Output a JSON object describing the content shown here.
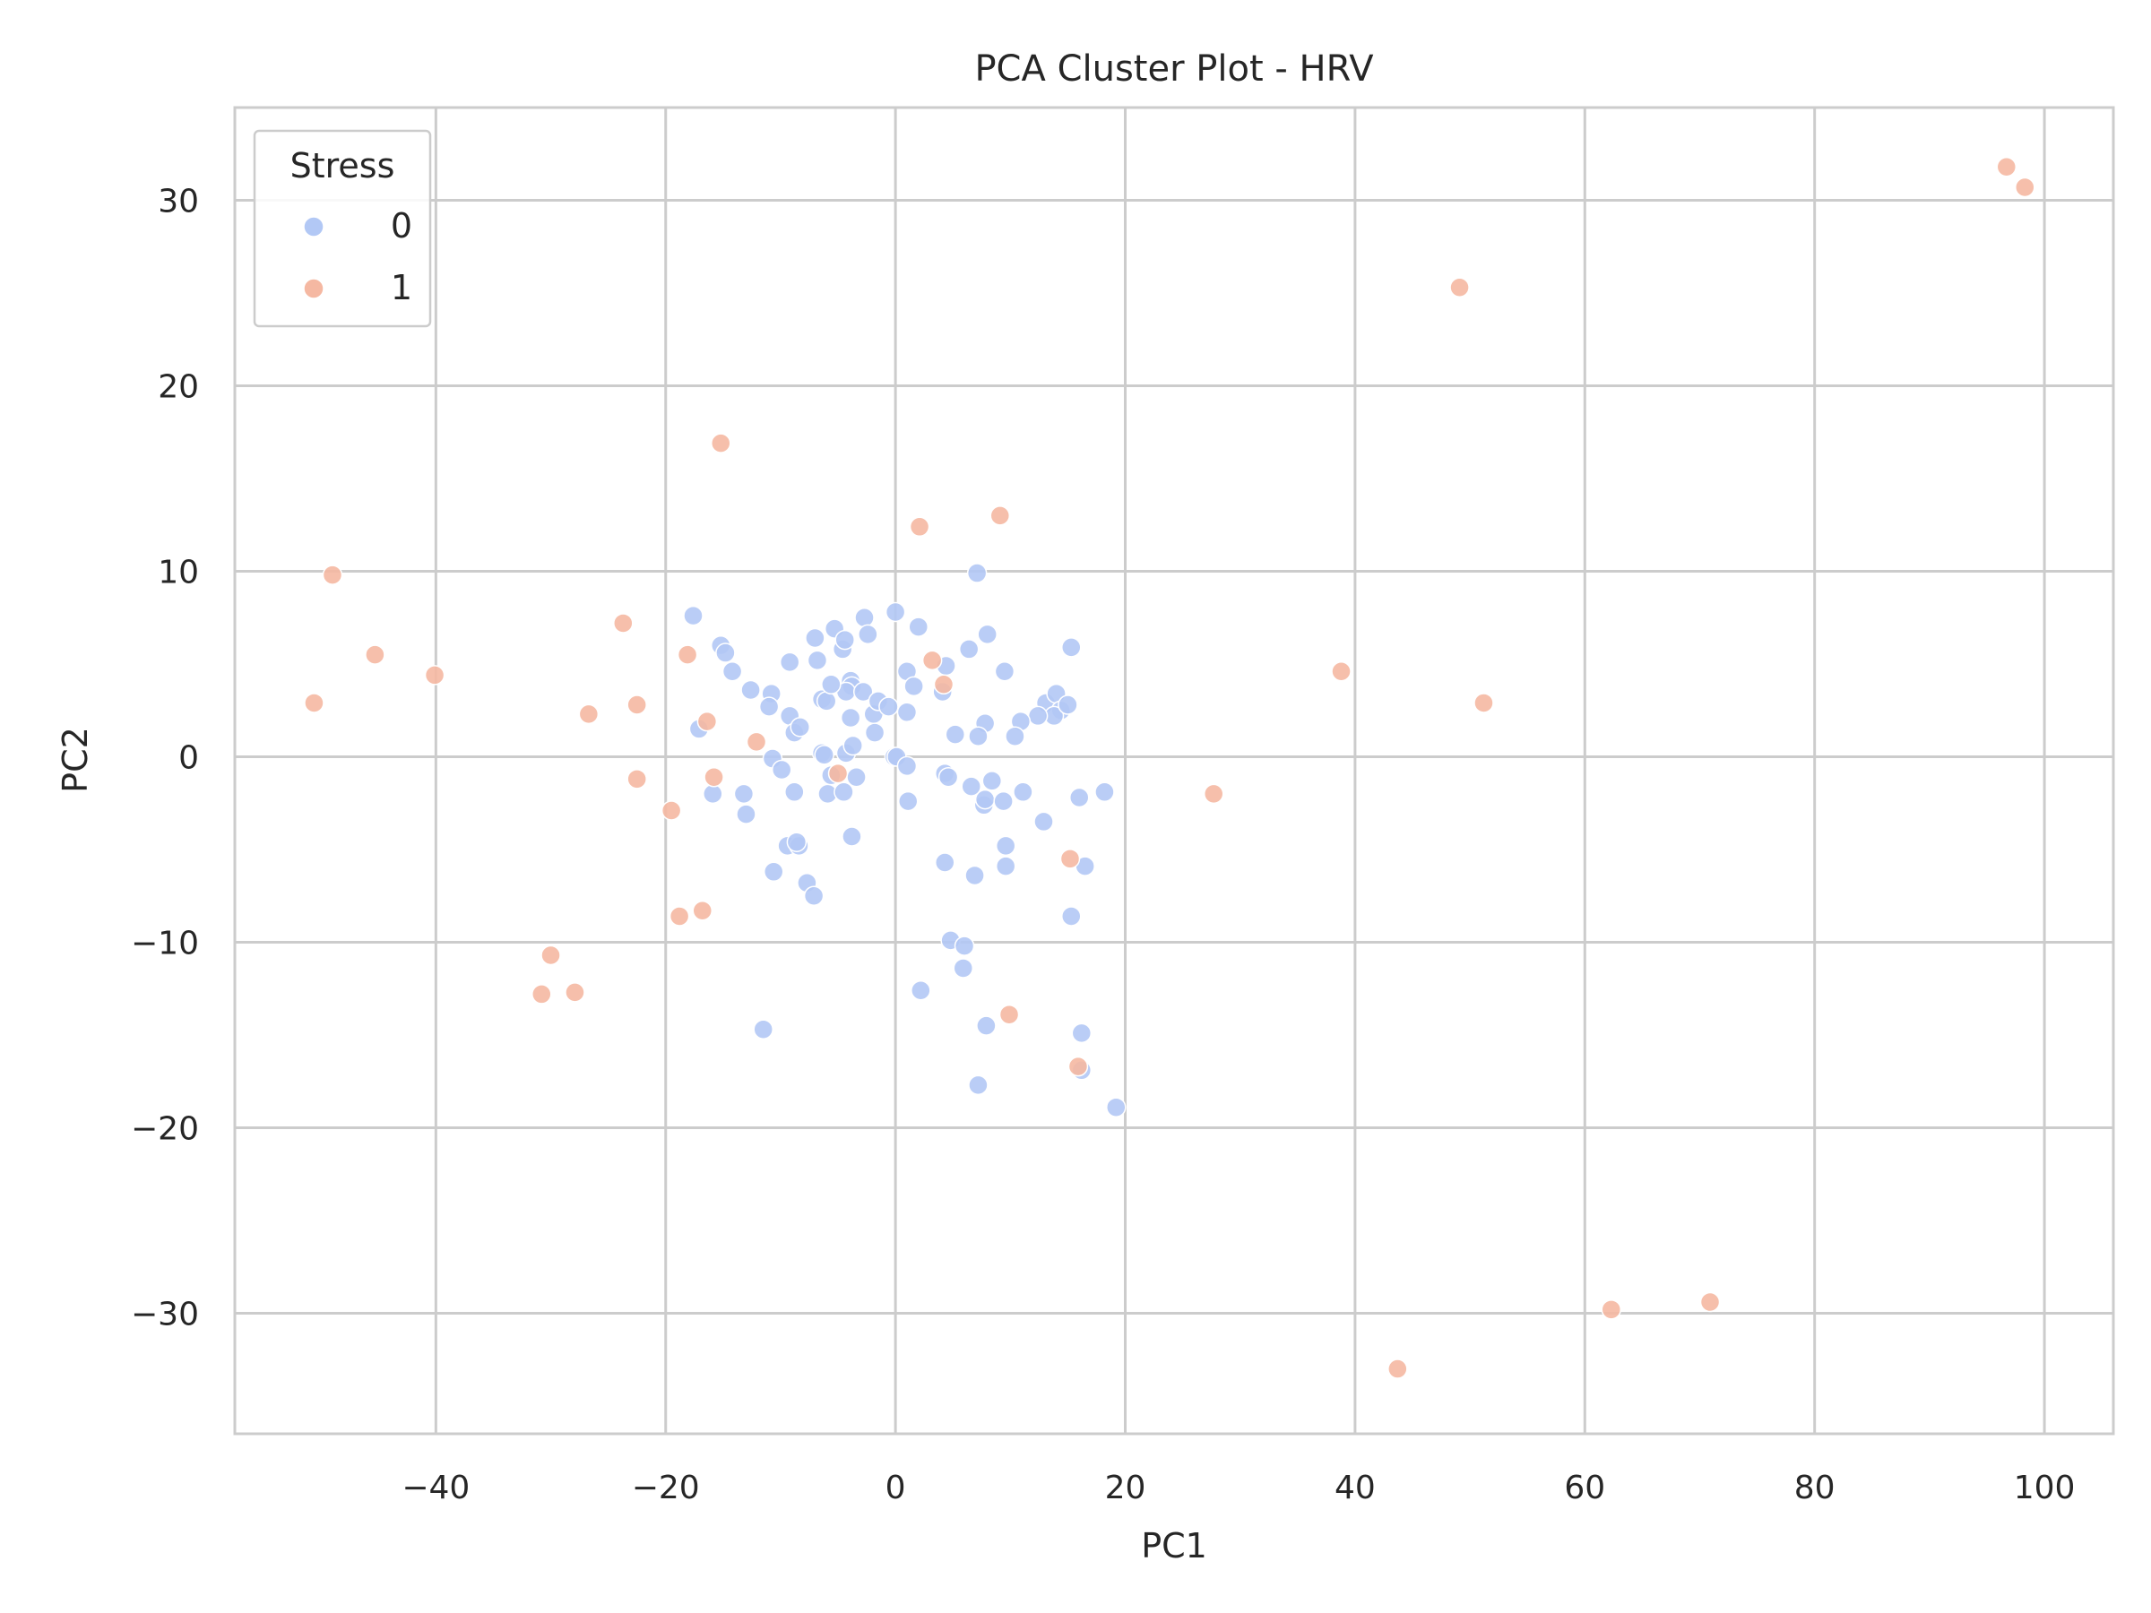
{
  "chart_data": {
    "type": "scatter",
    "title": "PCA Cluster Plot - HRV",
    "xlabel": "PC1",
    "ylabel": "PC2",
    "xlim": [
      -57.5,
      106
    ],
    "ylim": [
      -36.5,
      35
    ],
    "x_ticks": [
      -40,
      -20,
      0,
      20,
      40,
      60,
      80,
      100
    ],
    "y_ticks": [
      -30,
      -20,
      -10,
      0,
      10,
      20,
      30
    ],
    "x_tick_labels": [
      "−40",
      "−20",
      "0",
      "20",
      "40",
      "60",
      "80",
      "100"
    ],
    "y_tick_labels": [
      "−30",
      "−20",
      "−10",
      "0",
      "10",
      "20",
      "30"
    ],
    "grid": true,
    "legend": {
      "title": "Stress",
      "placement": "top-left"
    },
    "series": [
      {
        "name": "0",
        "color": "#b2c8f5",
        "points": [
          [
            -17.6,
            7.6
          ],
          [
            -15.2,
            6.0
          ],
          [
            -14.8,
            5.6
          ],
          [
            -14.2,
            4.6
          ],
          [
            -12.6,
            3.6
          ],
          [
            -10.8,
            3.4
          ],
          [
            -11.0,
            2.7
          ],
          [
            -9.2,
            5.1
          ],
          [
            -9.2,
            2.2
          ],
          [
            -8.8,
            1.3
          ],
          [
            -8.3,
            1.6
          ],
          [
            -7.0,
            6.4
          ],
          [
            -6.8,
            5.2
          ],
          [
            -6.4,
            3.1
          ],
          [
            -6.0,
            3.0
          ],
          [
            -5.3,
            6.9
          ],
          [
            -4.6,
            5.8
          ],
          [
            -4.4,
            6.3
          ],
          [
            -3.9,
            4.1
          ],
          [
            -3.8,
            3.8
          ],
          [
            -4.3,
            3.5
          ],
          [
            -5.6,
            3.9
          ],
          [
            -2.8,
            3.5
          ],
          [
            -2.7,
            7.5
          ],
          [
            -2.4,
            6.6
          ],
          [
            -1.9,
            2.3
          ],
          [
            -1.5,
            3.0
          ],
          [
            -0.6,
            2.7
          ],
          [
            0.0,
            7.8
          ],
          [
            2.0,
            7.0
          ],
          [
            1.0,
            4.6
          ],
          [
            1.6,
            3.8
          ],
          [
            1.0,
            2.4
          ],
          [
            4.4,
            4.9
          ],
          [
            4.1,
            3.5
          ],
          [
            6.4,
            5.8
          ],
          [
            8.0,
            6.6
          ],
          [
            9.5,
            4.6
          ],
          [
            7.1,
            9.9
          ],
          [
            15.3,
            5.9
          ],
          [
            13.1,
            2.9
          ],
          [
            14.0,
            3.4
          ],
          [
            14.4,
            2.5
          ],
          [
            13.8,
            2.2
          ],
          [
            15.0,
            2.8
          ],
          [
            12.4,
            2.2
          ],
          [
            10.9,
            1.9
          ],
          [
            10.4,
            1.1
          ],
          [
            7.8,
            1.8
          ],
          [
            7.2,
            1.1
          ],
          [
            5.2,
            1.2
          ],
          [
            -17.1,
            1.5
          ],
          [
            -13.2,
            -2.0
          ],
          [
            -13.0,
            -3.1
          ],
          [
            -15.9,
            -2.0
          ],
          [
            -10.7,
            -0.1
          ],
          [
            -9.9,
            -0.7
          ],
          [
            -8.8,
            -1.9
          ],
          [
            -6.4,
            0.2
          ],
          [
            -6.2,
            0.1
          ],
          [
            -5.9,
            -2.0
          ],
          [
            -5.6,
            -1.0
          ],
          [
            -4.5,
            -1.9
          ],
          [
            -4.3,
            0.2
          ],
          [
            -3.7,
            0.6
          ],
          [
            -3.4,
            -1.1
          ],
          [
            -3.9,
            2.1
          ],
          [
            -1.8,
            1.3
          ],
          [
            -0.1,
            0.0
          ],
          [
            0.1,
            0.0
          ],
          [
            1.0,
            -0.5
          ],
          [
            1.1,
            -2.4
          ],
          [
            4.3,
            -0.9
          ],
          [
            4.6,
            -1.1
          ],
          [
            6.6,
            -1.6
          ],
          [
            7.7,
            -2.6
          ],
          [
            7.8,
            -2.3
          ],
          [
            8.4,
            -1.3
          ],
          [
            9.4,
            -2.4
          ],
          [
            11.1,
            -1.9
          ],
          [
            16.0,
            -2.2
          ],
          [
            18.2,
            -1.9
          ],
          [
            -9.4,
            -4.8
          ],
          [
            -8.4,
            -4.8
          ],
          [
            -8.6,
            -4.6
          ],
          [
            -3.8,
            -4.3
          ],
          [
            -10.6,
            -6.2
          ],
          [
            -7.7,
            -6.8
          ],
          [
            -7.1,
            -7.5
          ],
          [
            4.3,
            -5.7
          ],
          [
            6.9,
            -6.4
          ],
          [
            9.6,
            -4.8
          ],
          [
            9.6,
            -5.9
          ],
          [
            12.9,
            -3.5
          ],
          [
            16.5,
            -5.9
          ],
          [
            15.3,
            -8.6
          ],
          [
            4.8,
            -9.9
          ],
          [
            6.0,
            -10.2
          ],
          [
            5.9,
            -11.4
          ],
          [
            2.2,
            -12.6
          ],
          [
            -11.5,
            -14.7
          ],
          [
            7.9,
            -14.5
          ],
          [
            16.2,
            -14.9
          ],
          [
            16.2,
            -16.9
          ],
          [
            7.2,
            -17.7
          ],
          [
            19.2,
            -18.9
          ]
        ]
      },
      {
        "name": "1",
        "color": "#f5b8a2",
        "points": [
          [
            -49.0,
            9.8
          ],
          [
            -45.3,
            5.5
          ],
          [
            -40.1,
            4.4
          ],
          [
            -50.6,
            2.9
          ],
          [
            -26.7,
            2.3
          ],
          [
            -23.7,
            7.2
          ],
          [
            -22.5,
            2.8
          ],
          [
            -22.5,
            -1.2
          ],
          [
            -18.1,
            5.5
          ],
          [
            -16.4,
            1.9
          ],
          [
            -12.1,
            0.8
          ],
          [
            -15.8,
            -1.1
          ],
          [
            -19.5,
            -2.9
          ],
          [
            -18.8,
            -8.6
          ],
          [
            -16.8,
            -8.3
          ],
          [
            -30.0,
            -10.7
          ],
          [
            -30.8,
            -12.8
          ],
          [
            -27.9,
            -12.7
          ],
          [
            -15.2,
            16.9
          ],
          [
            2.1,
            12.4
          ],
          [
            9.1,
            13.0
          ],
          [
            3.2,
            5.2
          ],
          [
            4.2,
            3.9
          ],
          [
            -5.0,
            -0.9
          ],
          [
            15.2,
            -5.5
          ],
          [
            9.9,
            -13.9
          ],
          [
            15.9,
            -16.7
          ],
          [
            27.7,
            -2.0
          ],
          [
            38.8,
            4.6
          ],
          [
            49.1,
            25.3
          ],
          [
            51.2,
            2.9
          ],
          [
            43.7,
            -33.0
          ],
          [
            62.3,
            -29.8
          ],
          [
            70.9,
            -29.4
          ],
          [
            96.7,
            31.8
          ],
          [
            98.3,
            30.7
          ]
        ]
      }
    ]
  }
}
